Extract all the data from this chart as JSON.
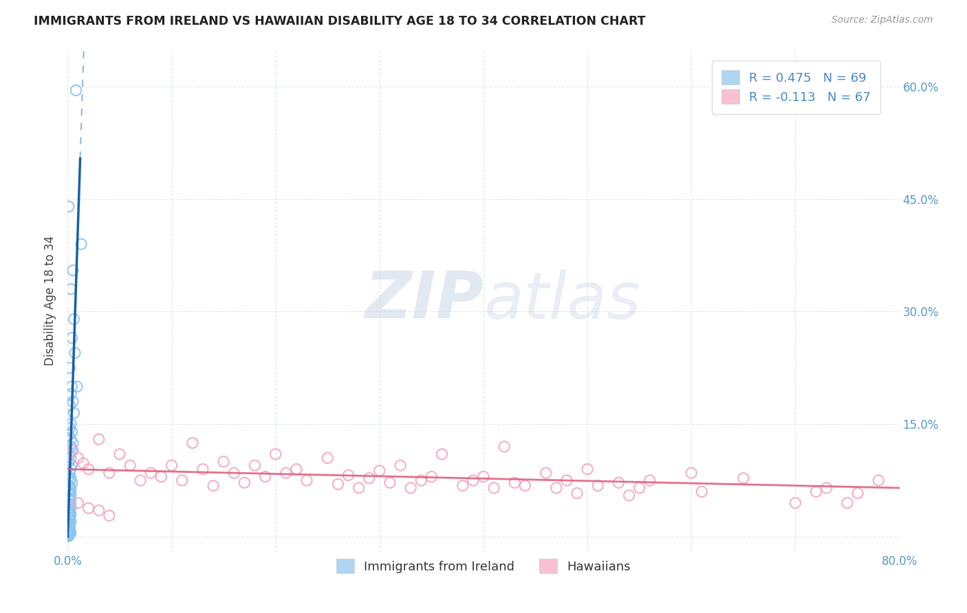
{
  "title": "IMMIGRANTS FROM IRELAND VS HAWAIIAN DISABILITY AGE 18 TO 34 CORRELATION CHART",
  "source": "Source: ZipAtlas.com",
  "ylabel": "Disability Age 18 to 34",
  "xlim": [
    0.0,
    0.8
  ],
  "ylim": [
    -0.02,
    0.65
  ],
  "legend_label1": "R = 0.475   N = 69",
  "legend_label2": "R = -0.113   N = 67",
  "legend_label_bottom1": "Immigrants from Ireland",
  "legend_label_bottom2": "Hawaiians",
  "ireland_color": "#8ec4ed",
  "hawaii_color": "#f4a7be",
  "trendline_ireland_solid_color": "#1a5fa8",
  "trendline_ireland_dashed_color": "#90b8e0",
  "trendline_hawaii_color": "#e06080",
  "background_color": "#ffffff",
  "grid_color": "#dce8f0",
  "watermark_zip": "ZIP",
  "watermark_atlas": "atlas",
  "ireland_x": [
    0.008,
    0.001,
    0.013,
    0.005,
    0.003,
    0.006,
    0.004,
    0.007,
    0.002,
    0.009,
    0.004,
    0.003,
    0.005,
    0.002,
    0.006,
    0.003,
    0.002,
    0.004,
    0.001,
    0.003,
    0.005,
    0.003,
    0.004,
    0.002,
    0.003,
    0.001,
    0.004,
    0.003,
    0.002,
    0.001,
    0.003,
    0.002,
    0.004,
    0.001,
    0.003,
    0.002,
    0.001,
    0.003,
    0.002,
    0.001,
    0.002,
    0.003,
    0.001,
    0.002,
    0.003,
    0.001,
    0.002,
    0.001,
    0.003,
    0.002,
    0.001,
    0.002,
    0.001,
    0.003,
    0.001,
    0.002,
    0.001,
    0.002,
    0.001,
    0.002,
    0.001,
    0.002,
    0.001,
    0.003,
    0.001,
    0.001,
    0.001,
    0.001,
    0.001
  ],
  "ireland_y": [
    0.595,
    0.44,
    0.39,
    0.355,
    0.33,
    0.29,
    0.265,
    0.245,
    0.225,
    0.2,
    0.2,
    0.19,
    0.18,
    0.175,
    0.165,
    0.15,
    0.145,
    0.14,
    0.135,
    0.13,
    0.125,
    0.12,
    0.115,
    0.11,
    0.105,
    0.1,
    0.095,
    0.09,
    0.085,
    0.08,
    0.078,
    0.075,
    0.072,
    0.068,
    0.065,
    0.062,
    0.06,
    0.057,
    0.055,
    0.052,
    0.05,
    0.047,
    0.044,
    0.042,
    0.039,
    0.037,
    0.034,
    0.032,
    0.03,
    0.028,
    0.026,
    0.024,
    0.022,
    0.02,
    0.018,
    0.016,
    0.014,
    0.012,
    0.01,
    0.009,
    0.008,
    0.007,
    0.006,
    0.005,
    0.004,
    0.003,
    0.002,
    0.001,
    0.001
  ],
  "hawaii_x": [
    0.005,
    0.01,
    0.015,
    0.02,
    0.03,
    0.04,
    0.05,
    0.06,
    0.07,
    0.08,
    0.09,
    0.1,
    0.11,
    0.12,
    0.13,
    0.14,
    0.15,
    0.16,
    0.17,
    0.18,
    0.19,
    0.2,
    0.21,
    0.22,
    0.23,
    0.25,
    0.26,
    0.27,
    0.28,
    0.29,
    0.3,
    0.31,
    0.32,
    0.33,
    0.34,
    0.35,
    0.36,
    0.38,
    0.39,
    0.4,
    0.41,
    0.42,
    0.43,
    0.44,
    0.46,
    0.47,
    0.48,
    0.49,
    0.5,
    0.51,
    0.53,
    0.54,
    0.55,
    0.56,
    0.6,
    0.61,
    0.65,
    0.7,
    0.72,
    0.73,
    0.75,
    0.76,
    0.78,
    0.01,
    0.02,
    0.03,
    0.04
  ],
  "hawaii_y": [
    0.115,
    0.105,
    0.098,
    0.09,
    0.13,
    0.085,
    0.11,
    0.095,
    0.075,
    0.085,
    0.08,
    0.095,
    0.075,
    0.125,
    0.09,
    0.068,
    0.1,
    0.085,
    0.072,
    0.095,
    0.08,
    0.11,
    0.085,
    0.09,
    0.075,
    0.105,
    0.07,
    0.082,
    0.065,
    0.078,
    0.088,
    0.072,
    0.095,
    0.065,
    0.075,
    0.08,
    0.11,
    0.068,
    0.075,
    0.08,
    0.065,
    0.12,
    0.072,
    0.068,
    0.085,
    0.065,
    0.075,
    0.058,
    0.09,
    0.068,
    0.072,
    0.055,
    0.065,
    0.075,
    0.085,
    0.06,
    0.078,
    0.045,
    0.06,
    0.065,
    0.045,
    0.058,
    0.075,
    0.045,
    0.038,
    0.035,
    0.028
  ],
  "trendline_ireland_x0": 0.0,
  "trendline_ireland_x_solid_end": 0.012,
  "trendline_ireland_x_dashed_end": 0.4,
  "trendline_ireland_y0": 0.0,
  "trendline_ireland_slope": 42.0,
  "trendline_hawaii_x0": 0.0,
  "trendline_hawaii_x1": 0.8,
  "trendline_hawaii_y0": 0.09,
  "trendline_hawaii_y1": 0.065
}
